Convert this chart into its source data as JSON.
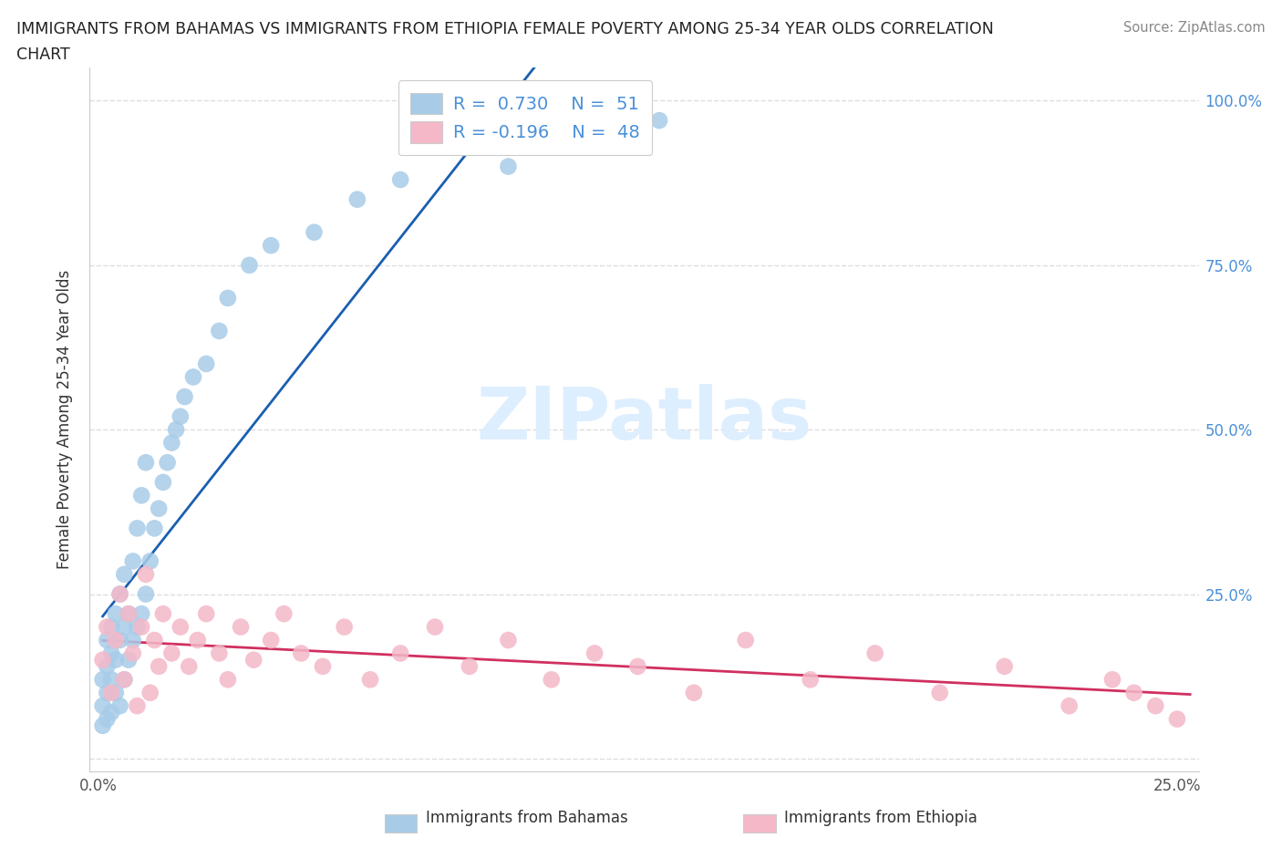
{
  "title_line1": "IMMIGRANTS FROM BAHAMAS VS IMMIGRANTS FROM ETHIOPIA FEMALE POVERTY AMONG 25-34 YEAR OLDS CORRELATION",
  "title_line2": "CHART",
  "source_text": "Source: ZipAtlas.com",
  "ylabel": "Female Poverty Among 25-34 Year Olds",
  "xlim": [
    -0.002,
    0.255
  ],
  "ylim": [
    -0.02,
    1.05
  ],
  "bahamas_R": 0.73,
  "bahamas_N": 51,
  "ethiopia_R": -0.196,
  "ethiopia_N": 48,
  "bahamas_color": "#a8cce8",
  "ethiopia_color": "#f4b8c8",
  "bahamas_line_color": "#1a5fb0",
  "ethiopia_line_color": "#d03060",
  "legend_color_blue": "#a8cce8",
  "legend_color_pink": "#f4b8c8",
  "watermark_color": "#ddeeff",
  "background_color": "#ffffff",
  "grid_color": "#dddddd",
  "tick_label_color": "#4a90d9",
  "bahamas_x": [
    0.001,
    0.001,
    0.001,
    0.002,
    0.002,
    0.002,
    0.002,
    0.003,
    0.003,
    0.003,
    0.003,
    0.004,
    0.004,
    0.004,
    0.005,
    0.005,
    0.005,
    0.006,
    0.006,
    0.006,
    0.007,
    0.007,
    0.008,
    0.008,
    0.009,
    0.009,
    0.01,
    0.01,
    0.011,
    0.011,
    0.012,
    0.013,
    0.014,
    0.015,
    0.016,
    0.017,
    0.018,
    0.019,
    0.02,
    0.022,
    0.025,
    0.028,
    0.03,
    0.035,
    0.04,
    0.05,
    0.06,
    0.07,
    0.095,
    0.11,
    0.13
  ],
  "bahamas_y": [
    0.05,
    0.08,
    0.12,
    0.06,
    0.1,
    0.14,
    0.18,
    0.07,
    0.12,
    0.16,
    0.2,
    0.1,
    0.15,
    0.22,
    0.08,
    0.18,
    0.25,
    0.12,
    0.2,
    0.28,
    0.15,
    0.22,
    0.18,
    0.3,
    0.2,
    0.35,
    0.22,
    0.4,
    0.25,
    0.45,
    0.3,
    0.35,
    0.38,
    0.42,
    0.45,
    0.48,
    0.5,
    0.52,
    0.55,
    0.58,
    0.6,
    0.65,
    0.7,
    0.75,
    0.78,
    0.8,
    0.85,
    0.88,
    0.9,
    0.93,
    0.97
  ],
  "ethiopia_x": [
    0.001,
    0.002,
    0.003,
    0.004,
    0.005,
    0.006,
    0.007,
    0.008,
    0.009,
    0.01,
    0.011,
    0.012,
    0.013,
    0.014,
    0.015,
    0.017,
    0.019,
    0.021,
    0.023,
    0.025,
    0.028,
    0.03,
    0.033,
    0.036,
    0.04,
    0.043,
    0.047,
    0.052,
    0.057,
    0.063,
    0.07,
    0.078,
    0.086,
    0.095,
    0.105,
    0.115,
    0.125,
    0.138,
    0.15,
    0.165,
    0.18,
    0.195,
    0.21,
    0.225,
    0.235,
    0.24,
    0.245,
    0.25
  ],
  "ethiopia_y": [
    0.15,
    0.2,
    0.1,
    0.18,
    0.25,
    0.12,
    0.22,
    0.16,
    0.08,
    0.2,
    0.28,
    0.1,
    0.18,
    0.14,
    0.22,
    0.16,
    0.2,
    0.14,
    0.18,
    0.22,
    0.16,
    0.12,
    0.2,
    0.15,
    0.18,
    0.22,
    0.16,
    0.14,
    0.2,
    0.12,
    0.16,
    0.2,
    0.14,
    0.18,
    0.12,
    0.16,
    0.14,
    0.1,
    0.18,
    0.12,
    0.16,
    0.1,
    0.14,
    0.08,
    0.12,
    0.1,
    0.08,
    0.06
  ]
}
